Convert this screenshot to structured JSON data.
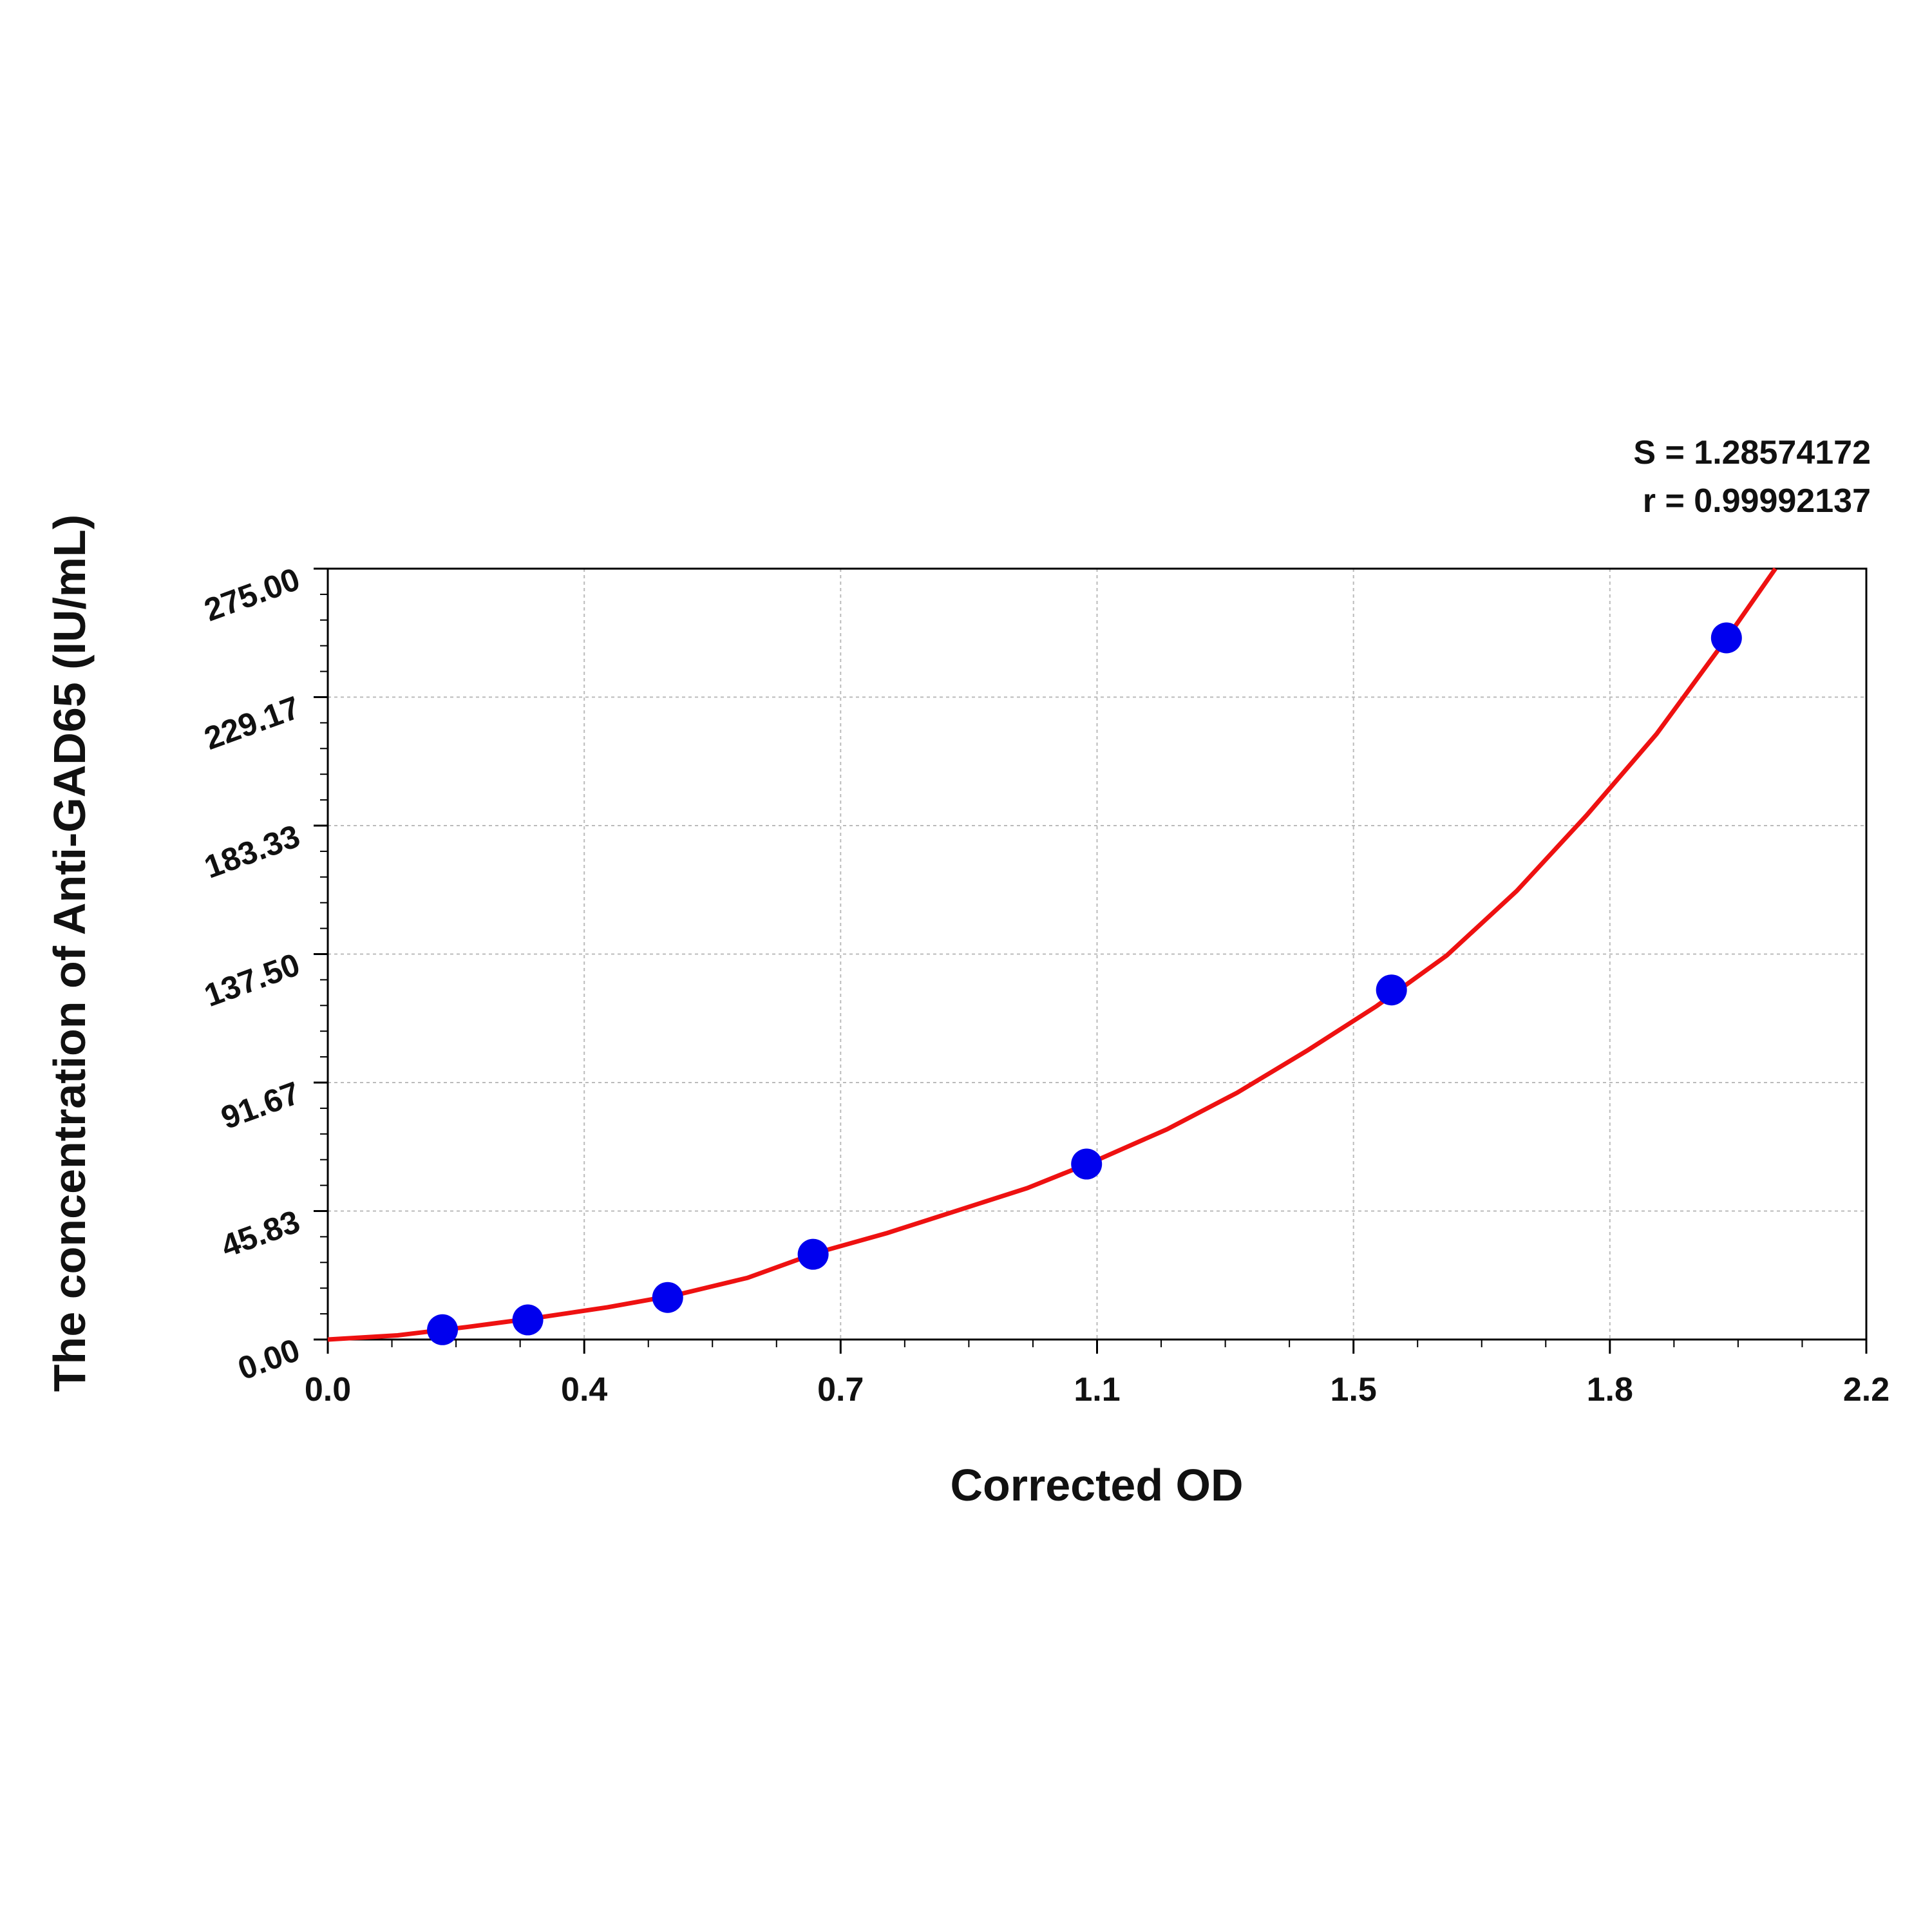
{
  "chart_data": {
    "type": "scatter",
    "x_label": "Corrected OD",
    "y_label": "The concentration of Anti-GAD65 (IU/mL)",
    "annotations": [
      "S = 1.28574172",
      "r = 0.99992137"
    ],
    "xlim": [
      0,
      2.2
    ],
    "ylim": [
      0,
      275
    ],
    "xticks": [
      {
        "value": 0,
        "label": "0.0"
      },
      {
        "value": 0.3667,
        "label": "0.4"
      },
      {
        "value": 0.7333,
        "label": "0.7"
      },
      {
        "value": 1.1,
        "label": "1.1"
      },
      {
        "value": 1.4667,
        "label": "1.5"
      },
      {
        "value": 1.8333,
        "label": "1.8"
      },
      {
        "value": 2.2,
        "label": "2.2"
      }
    ],
    "yticks": [
      {
        "value": 0,
        "label": "0.00"
      },
      45.83,
      91.67,
      {
        "value": 137.5,
        "label": "137.50"
      },
      183.33,
      229.17,
      {
        "value": 275,
        "label": "275.00"
      }
    ],
    "grid": true,
    "series": [
      {
        "style": "points",
        "color": "#0000ee",
        "x": [
          0.164,
          0.286,
          0.486,
          0.694,
          1.085,
          1.521,
          2.0
        ],
        "values": [
          3.5,
          7.0,
          15.0,
          30.4,
          62.6,
          124.7,
          250.3
        ]
      },
      {
        "style": "line",
        "color": "#ee1111",
        "x": [
          0,
          0.1,
          0.2,
          0.3,
          0.4,
          0.5,
          0.6,
          0.7,
          0.8,
          0.9,
          1.0,
          1.1,
          1.2,
          1.3,
          1.4,
          1.5,
          1.6,
          1.7,
          1.8,
          1.9,
          2.0,
          2.07
        ],
        "values": [
          0,
          1.5,
          4.5,
          7.8,
          11.5,
          16,
          22,
          31,
          38,
          46,
          54,
          64,
          75,
          88,
          103,
          119,
          137,
          160,
          187,
          216,
          250,
          275
        ]
      }
    ]
  }
}
